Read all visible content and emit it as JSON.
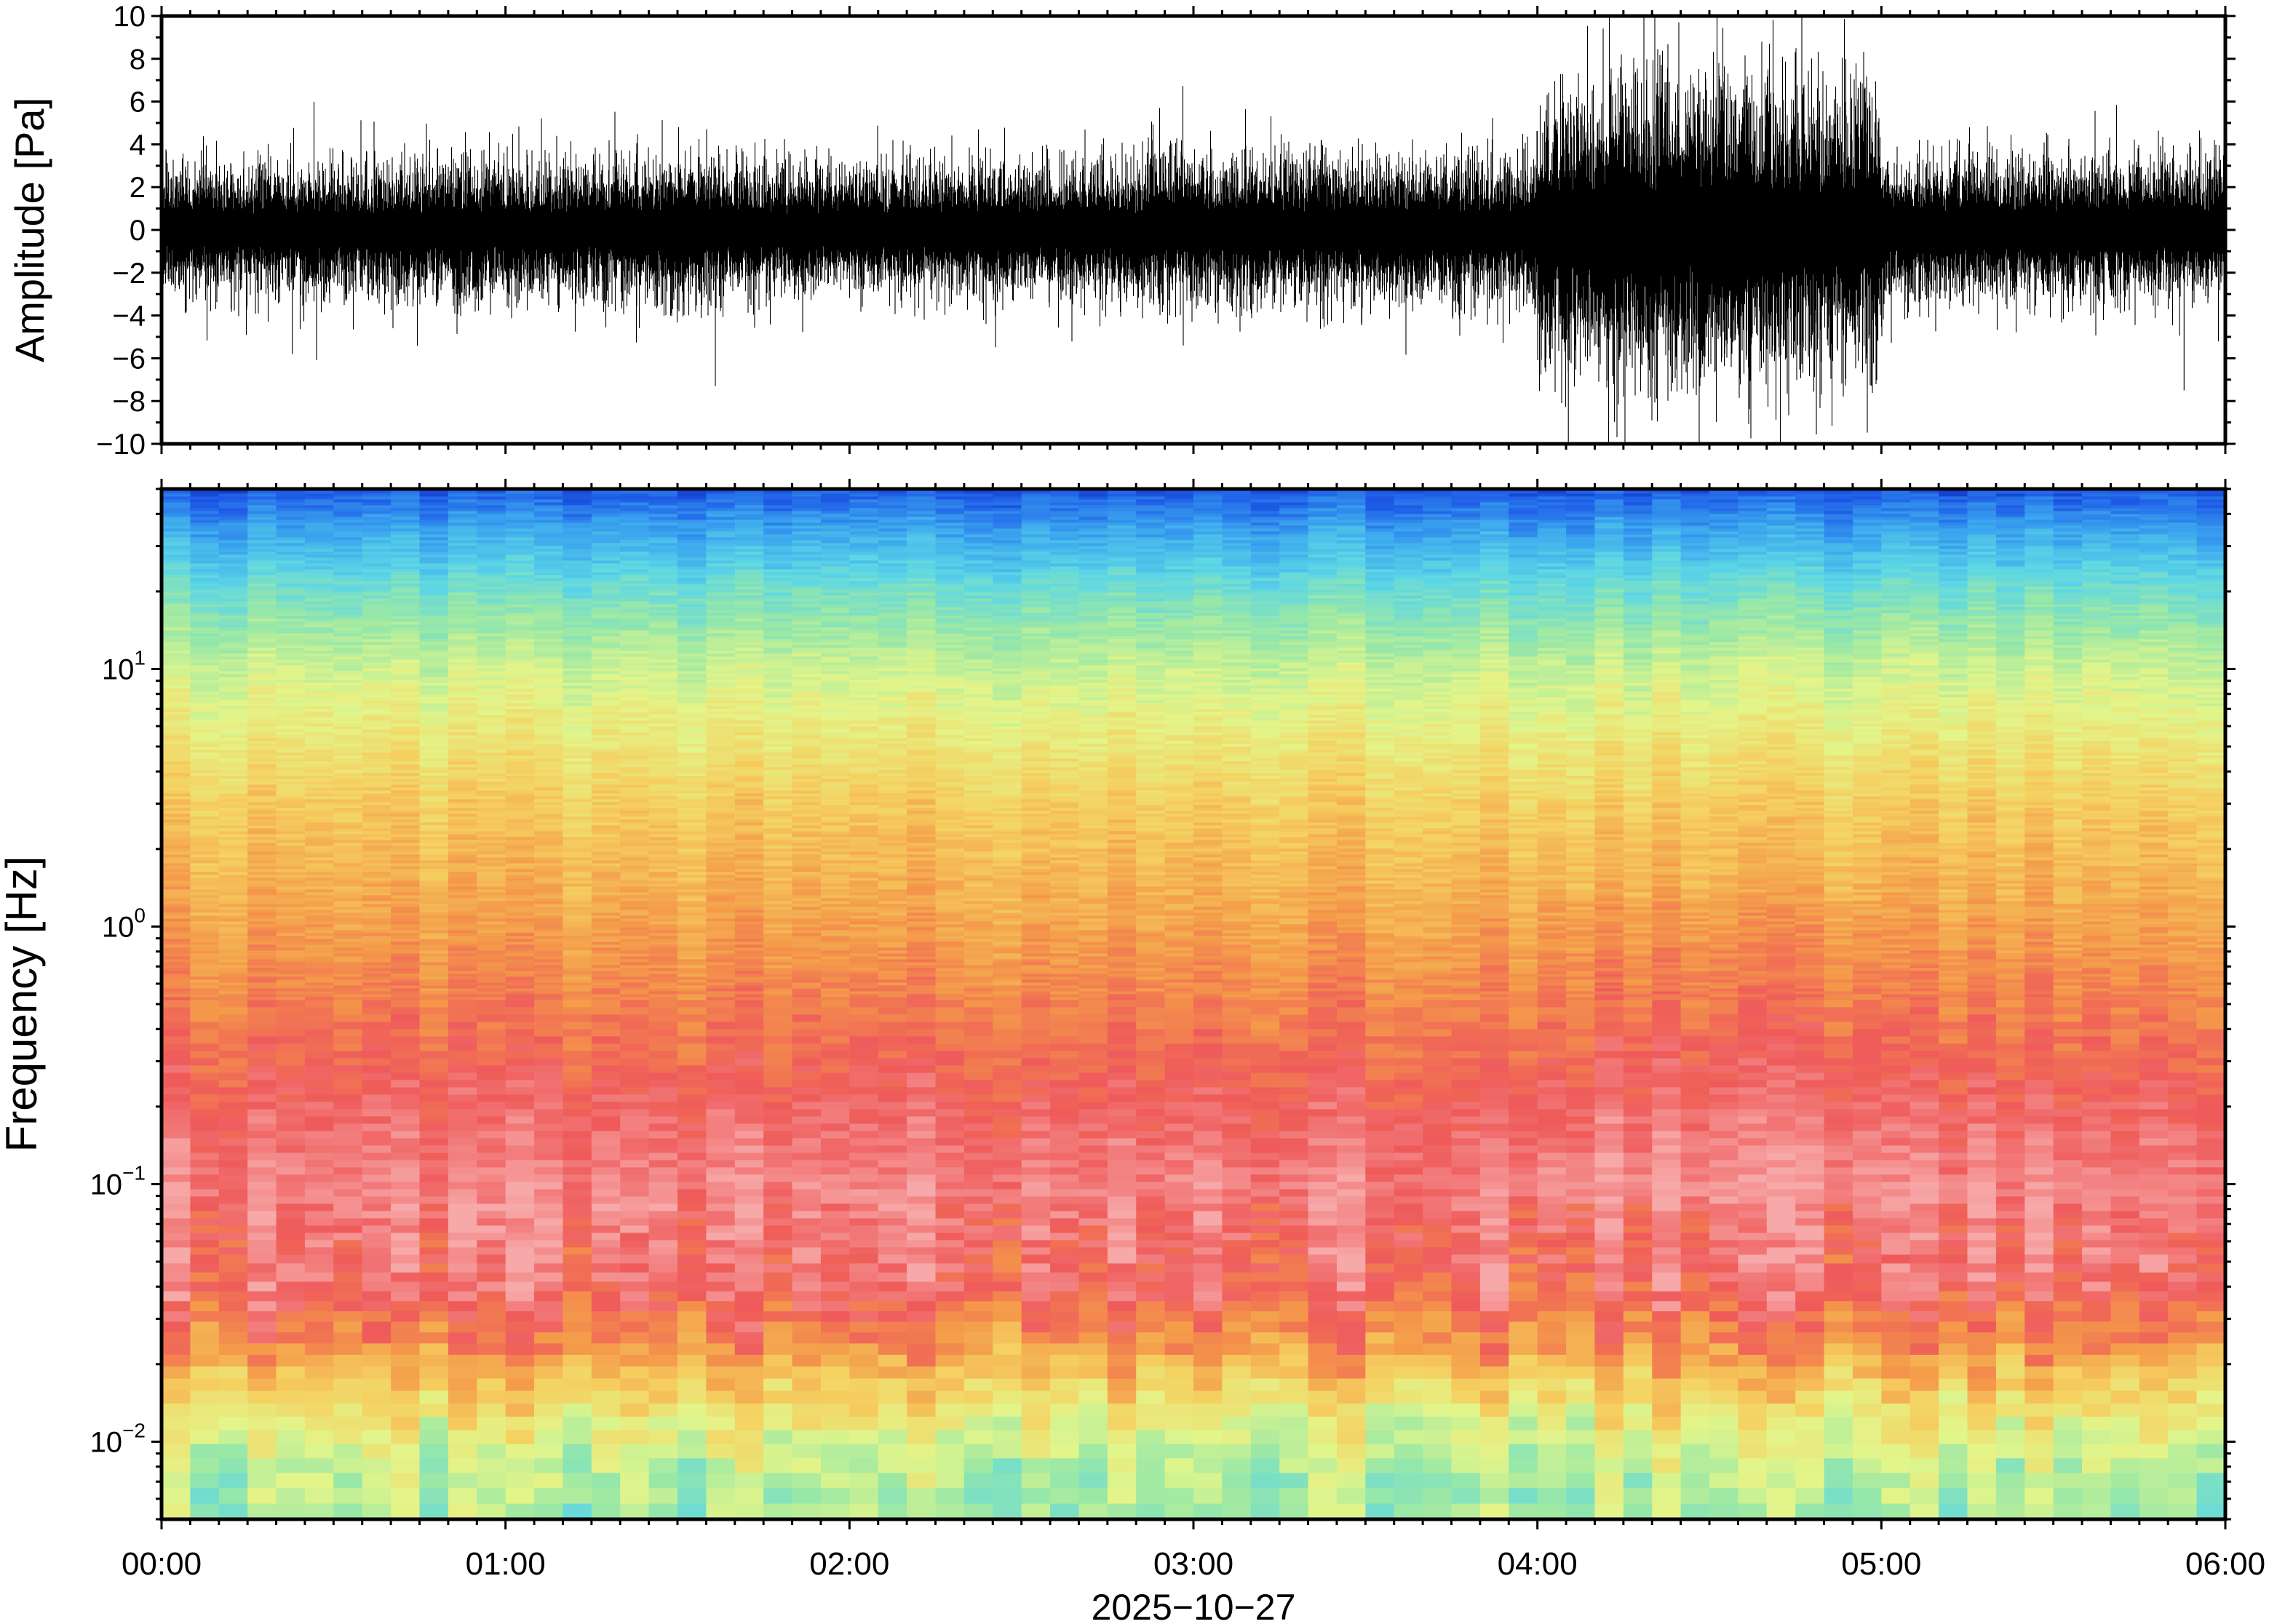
{
  "chart_data": [
    {
      "type": "line",
      "panel": "waveform",
      "title": "",
      "xlabel": "",
      "ylabel": "Amplitude [Pa]",
      "ylim": [
        -10,
        10
      ],
      "yticks": [
        -10,
        -8,
        -6,
        -4,
        -2,
        0,
        2,
        4,
        6,
        8,
        10
      ],
      "ytick_labels": [
        "−10",
        "−8",
        "−6",
        "−4",
        "−2",
        "0",
        "2",
        "4",
        "6",
        "8",
        "10"
      ],
      "xlim_hours": [
        0,
        6
      ],
      "x_unit": "hours since 2025-10-27 00:00",
      "line_color": "#000000",
      "envelope": {
        "x": [
          0,
          0.5,
          1,
          1.5,
          2,
          2.5,
          3,
          3.5,
          3.99,
          4.01,
          4.3,
          4.6,
          4.9,
          4.99,
          5.01,
          5.5,
          6
        ],
        "noise_rms": [
          1.2,
          1.2,
          1.25,
          1.3,
          1.15,
          1.2,
          1.3,
          1.3,
          1.35,
          2.5,
          2.8,
          2.6,
          2.7,
          2.6,
          1.3,
          1.25,
          1.35
        ]
      },
      "peaks": [
        {
          "x": 0.38,
          "y": -5.8
        },
        {
          "x": 1.61,
          "y": -7.3
        },
        {
          "x": 4.09,
          "y": -10.0
        },
        {
          "x": 4.91,
          "y": 7.3
        },
        {
          "x": 5.88,
          "y": -7.5
        }
      ]
    },
    {
      "type": "heatmap",
      "panel": "spectrogram",
      "title": "",
      "xlabel": "",
      "ylabel": "Frequency [Hz]",
      "yscale": "log",
      "ylim": [
        0.005,
        50
      ],
      "yticks": [
        0.01,
        0.1,
        1,
        10
      ],
      "ytick_labels": [
        {
          "base": "10",
          "exp": "−2"
        },
        {
          "base": "10",
          "exp": "−1"
        },
        {
          "base": "10",
          "exp": "0"
        },
        {
          "base": "10",
          "exp": "1"
        }
      ],
      "xlim_hours": [
        0,
        6
      ],
      "colormap": [
        "#f7a8a8",
        "#ef5a5a",
        "#f49a4a",
        "#f5d060",
        "#e3f58a",
        "#9ae8a6",
        "#5cd6e6",
        "#3ba6ee",
        "#1f5ee8",
        "#0a1eb6"
      ],
      "power_profile": {
        "freq_hz": [
          0.005,
          0.008,
          0.012,
          0.017,
          0.025,
          0.04,
          0.07,
          0.1,
          0.2,
          0.4,
          1.0,
          3,
          10,
          20,
          35,
          50
        ],
        "level": [
          0.55,
          0.5,
          0.42,
          0.32,
          0.2,
          0.1,
          0.07,
          0.05,
          0.1,
          0.16,
          0.24,
          0.33,
          0.48,
          0.62,
          0.78,
          0.9
        ]
      },
      "time_axis": {
        "ticks": [
          "00:00",
          "01:00",
          "02:00",
          "03:00",
          "04:00",
          "05:00",
          "06:00"
        ],
        "date_label": "2025−10−27"
      }
    }
  ]
}
